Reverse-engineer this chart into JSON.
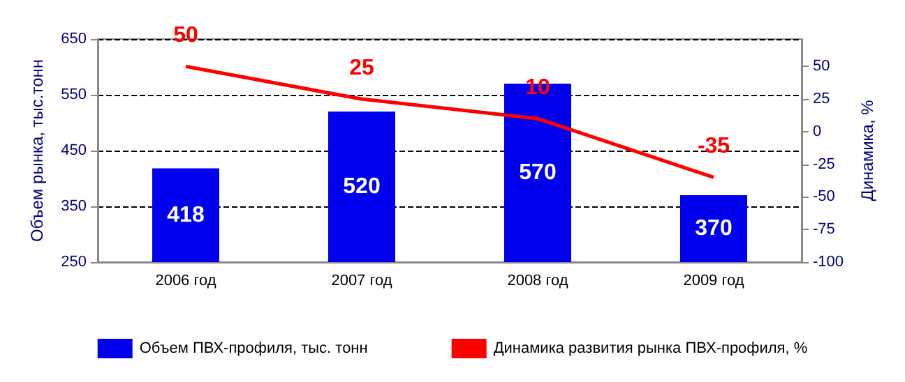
{
  "chart_data": {
    "type": "bar",
    "ylabel": "Объем рынка, тыс.тонн",
    "y2label": "Динамика, %",
    "categories": [
      "2006 год",
      "2007 год",
      "2008 год",
      "2009 год"
    ],
    "series": [
      {
        "name": "Объем ПВХ-профиля, тыс. тонн",
        "color": "#0000ee",
        "values": [
          418,
          520,
          570,
          370
        ]
      },
      {
        "name": "Динамика развития рынка ПВХ-профиля, %",
        "type": "line",
        "axis": "y2",
        "color": "#ff0000",
        "values": [
          50,
          25,
          10,
          -35
        ]
      }
    ],
    "ylim": [
      250,
      650
    ],
    "yticks": [
      250,
      350,
      450,
      550,
      650
    ],
    "y2lim": [
      -100,
      71
    ],
    "y2ticks": [
      -100,
      -75,
      -50,
      -25,
      0,
      25,
      50
    ],
    "grid": "y",
    "legend": "bottom",
    "marker": "none",
    "line_style": "solid",
    "data_labels": true
  }
}
